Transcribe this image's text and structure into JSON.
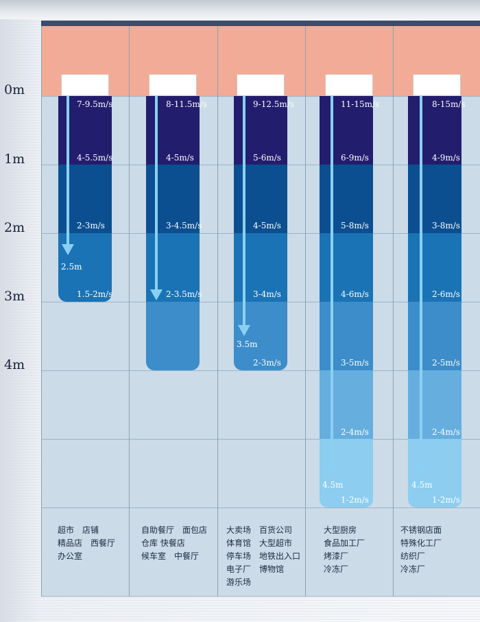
{
  "depth_axis": [
    "0m",
    "1m",
    "2m",
    "3m",
    "4m"
  ],
  "columns": [
    {
      "speeds": [
        "7-9.5m/s",
        "4-5.5m/s",
        "2-3m/s",
        "1.5-2m/s"
      ],
      "throw_depth": "2.5m",
      "applications": [
        "超市　店铺",
        "精品店　西餐厅",
        "办公室"
      ]
    },
    {
      "speeds": [
        "8-11.5m/s",
        "4-5m/s",
        "3-4.5m/s",
        "2-3.5m/s"
      ],
      "throw_depth": "",
      "applications": [
        "自助餐厅　面包店",
        "仓库 快餐店",
        "候车室　中餐厅"
      ]
    },
    {
      "speeds": [
        "9-12.5m/s",
        "5-6m/s",
        "4-5m/s",
        "3-4m/s",
        "2-3m/s"
      ],
      "throw_depth": "3.5m",
      "applications": [
        "大卖场　百货公司",
        "体育馆　大型超市",
        "停车场　地铁出入口",
        "电子厂　博物馆",
        "游乐场"
      ]
    },
    {
      "speeds": [
        "11-15m/s",
        "6-9m/s",
        "5-8m/s",
        "4-6m/s",
        "3-5m/s",
        "2-4m/s",
        "1-2m/s"
      ],
      "throw_depth": "4.5m",
      "applications": [
        "大型厨房",
        "食品加工厂",
        "烤漆厂",
        "冷冻厂"
      ]
    },
    {
      "speeds": [
        "8-15m/s",
        "4-9m/s",
        "3-8m/s",
        "2-6m/s",
        "2-5m/s",
        "2-4m/s",
        "1-2m/s"
      ],
      "throw_depth": "4.5m",
      "applications": [
        "不锈钢店面",
        "特殊化工厂",
        "纺织厂",
        "冷冻厂"
      ]
    }
  ],
  "colors": {
    "header": "#f1ab96",
    "panel": "#cbdbe8",
    "zone_1": "#231d6e",
    "zone_2": "#0b4f91",
    "zone_3": "#1a73b5",
    "zone_4": "#3c8dc9",
    "zone_5": "#66aede",
    "zone_6": "#8ccdf0",
    "arrow": "#8bd0f4"
  }
}
